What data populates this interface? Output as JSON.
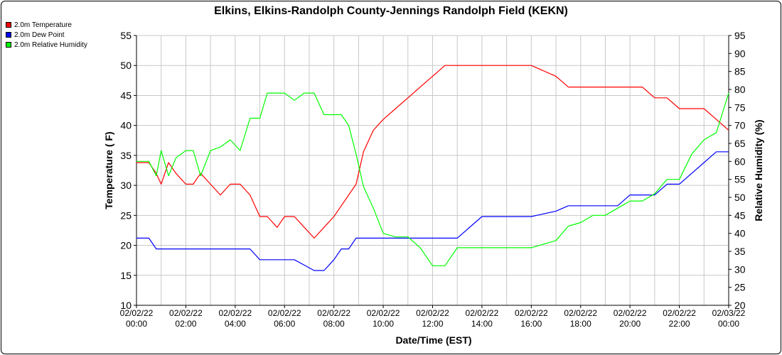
{
  "chart_data": {
    "type": "line",
    "title": "Elkins, Elkins-Randolph County-Jennings Randolph Field (KEKN)",
    "xlabel": "Date/Time (EST)",
    "ylabel": "Temperature ( F)",
    "y2label": "Relative Humidity (%)",
    "xlim": [
      "02/02/22 00:00",
      "02/03/22 00:00"
    ],
    "ylim": [
      10,
      55
    ],
    "y2lim": [
      20,
      95
    ],
    "grid": true,
    "legend_position": "top-left",
    "x_ticks": [
      {
        "date": "02/02/22",
        "time": "00:00"
      },
      {
        "date": "02/02/22",
        "time": "02:00"
      },
      {
        "date": "02/02/22",
        "time": "04:00"
      },
      {
        "date": "02/02/22",
        "time": "06:00"
      },
      {
        "date": "02/02/22",
        "time": "08:00"
      },
      {
        "date": "02/02/22",
        "time": "10:00"
      },
      {
        "date": "02/02/22",
        "time": "12:00"
      },
      {
        "date": "02/02/22",
        "time": "14:00"
      },
      {
        "date": "02/02/22",
        "time": "16:00"
      },
      {
        "date": "02/02/22",
        "time": "18:00"
      },
      {
        "date": "02/02/22",
        "time": "20:00"
      },
      {
        "date": "02/02/22",
        "time": "22:00"
      },
      {
        "date": "02/03/22",
        "time": "00:00"
      }
    ],
    "y_ticks": [
      "10",
      "15",
      "20",
      "25",
      "30",
      "35",
      "40",
      "45",
      "50",
      "55"
    ],
    "y2_ticks": [
      "20",
      "25",
      "30",
      "35",
      "40",
      "45",
      "50",
      "55",
      "60",
      "65",
      "70",
      "75",
      "80",
      "85",
      "90",
      "95"
    ],
    "x_hours": [
      0,
      0.5,
      0.8,
      1.0,
      1.3,
      1.6,
      2.0,
      2.3,
      2.6,
      3.0,
      3.4,
      3.8,
      4.2,
      4.6,
      5.0,
      5.3,
      5.7,
      6.0,
      6.4,
      6.8,
      7.2,
      7.6,
      8.0,
      8.3,
      8.6,
      8.9,
      9.2,
      9.6,
      10.0,
      10.5,
      11.0,
      11.5,
      12.0,
      12.5,
      13.0,
      14.0,
      15.0,
      16.0,
      17.0,
      17.5,
      18.0,
      18.5,
      19.0,
      19.5,
      20.0,
      20.5,
      21.0,
      21.5,
      22.0,
      22.5,
      23.0,
      23.5,
      24.0
    ],
    "series": [
      {
        "name": "2.0m Temperature",
        "axis": "left",
        "color": "#ff0000",
        "values": [
          33.8,
          33.8,
          32.0,
          30.2,
          33.8,
          32.0,
          30.2,
          30.2,
          32.0,
          30.2,
          28.4,
          30.2,
          30.2,
          28.4,
          24.8,
          24.8,
          23.0,
          24.8,
          24.8,
          23.0,
          21.2,
          23.0,
          24.8,
          26.6,
          28.4,
          30.2,
          35.6,
          39.2,
          41.0,
          42.8,
          44.6,
          46.4,
          48.2,
          50.0,
          50.0,
          50.0,
          50.0,
          50.0,
          48.2,
          46.4,
          46.4,
          46.4,
          46.4,
          46.4,
          46.4,
          46.4,
          44.6,
          44.6,
          42.8,
          42.8,
          42.8,
          41.0,
          39.2
        ]
      },
      {
        "name": "2.0m Dew Point",
        "axis": "left",
        "color": "#0000ff",
        "values": [
          21.2,
          21.2,
          19.4,
          19.4,
          19.4,
          19.4,
          19.4,
          19.4,
          19.4,
          19.4,
          19.4,
          19.4,
          19.4,
          19.4,
          17.6,
          17.6,
          17.6,
          17.6,
          17.6,
          16.7,
          15.8,
          15.8,
          17.6,
          19.4,
          19.4,
          21.2,
          21.2,
          21.2,
          21.2,
          21.2,
          21.2,
          21.2,
          21.2,
          21.2,
          21.2,
          24.8,
          24.8,
          24.8,
          25.7,
          26.6,
          26.6,
          26.6,
          26.6,
          26.6,
          28.4,
          28.4,
          28.4,
          30.2,
          30.2,
          32.0,
          33.8,
          35.6,
          35.6
        ]
      },
      {
        "name": "2.0m Relative Humidity",
        "axis": "right",
        "color": "#00ff00",
        "values": [
          60,
          60,
          56,
          63,
          56,
          61,
          63,
          63,
          56,
          63,
          64,
          66,
          63,
          72,
          72,
          79,
          79,
          79,
          77,
          79,
          79,
          73,
          73,
          73,
          70,
          62,
          53,
          47,
          40,
          39,
          39,
          36,
          31,
          31,
          36,
          36,
          36,
          36,
          38,
          42,
          43,
          45,
          45,
          47,
          49,
          49,
          51,
          55,
          55,
          62,
          66,
          68,
          79
        ]
      }
    ]
  }
}
